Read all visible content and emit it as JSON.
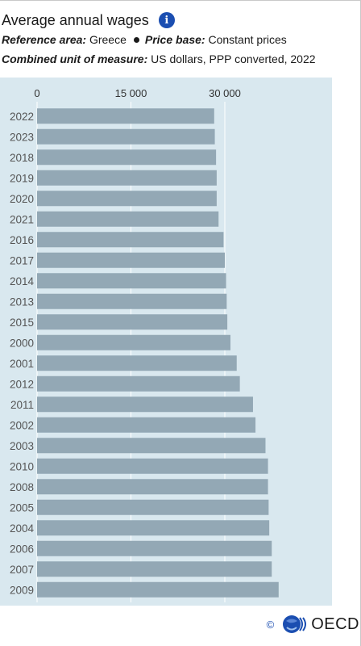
{
  "header": {
    "title": "Average annual wages",
    "info_icon": "info-icon",
    "reference_area_label": "Reference area:",
    "reference_area_value": "Greece",
    "price_base_label": "Price base:",
    "price_base_value": "Constant prices",
    "unit_label": "Combined unit of measure:",
    "unit_value": "US dollars, PPP converted, 2022"
  },
  "footer": {
    "copyright": "©",
    "brand": "OECD",
    "brand_icon": "oecd-globe-icon"
  },
  "colors": {
    "bar": "#93a8b5",
    "plot_background": "#d9e8ef",
    "gridline": "#ffffff",
    "accent": "#1b4eb1"
  },
  "chart_data": {
    "type": "bar",
    "orientation": "horizontal",
    "title": "",
    "xlabel": "",
    "ylabel": "",
    "xlim": [
      0,
      39000
    ],
    "xticks": [
      0,
      15000,
      30000
    ],
    "xtick_labels": [
      "0",
      "15 000",
      "30 000"
    ],
    "grid": true,
    "legend": "none",
    "categories": [
      "2022",
      "2023",
      "2018",
      "2019",
      "2020",
      "2021",
      "2016",
      "2017",
      "2014",
      "2013",
      "2015",
      "2000",
      "2001",
      "2012",
      "2011",
      "2002",
      "2003",
      "2010",
      "2008",
      "2005",
      "2004",
      "2006",
      "2007",
      "2009"
    ],
    "values": [
      28300,
      28400,
      28600,
      28700,
      28700,
      29000,
      29800,
      30000,
      30200,
      30300,
      30400,
      30900,
      31900,
      32400,
      34500,
      34900,
      36500,
      36900,
      36900,
      37000,
      37100,
      37500,
      37500,
      38600
    ]
  }
}
